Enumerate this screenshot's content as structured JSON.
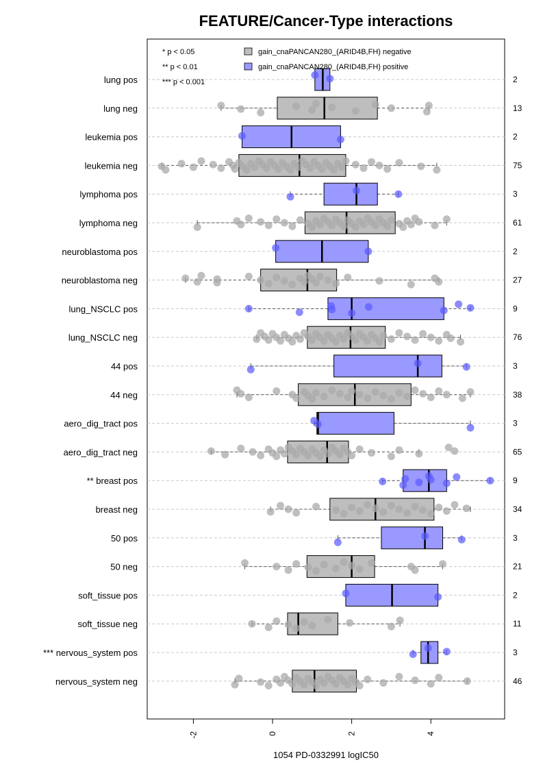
{
  "chart_data": {
    "type": "boxplot",
    "title": "FEATURE/Cancer-Type interactions",
    "xlabel": "1054 PD-0332991 logIC50",
    "xlim": [
      -3.0,
      6.0
    ],
    "xticks": [
      "-2",
      "0",
      "2",
      "4"
    ],
    "xtick_values": [
      -2,
      0,
      2,
      4
    ],
    "significance_legend": [
      "* p < 0.05",
      "** p < 0.01",
      "*** p < 0.001"
    ],
    "legend": {
      "position": "top",
      "entries": [
        {
          "label": "gain_cnaPANCAN280_(ARID4B,FH) negative",
          "color": "#bebebe"
        },
        {
          "label": "gain_cnaPANCAN280_(ARID4B,FH) positive",
          "color": "#9999ff"
        }
      ]
    },
    "colors": {
      "negative_box": "#bebebe",
      "positive_box": "#9999ff",
      "negative_point": "#a9a9a9",
      "positive_point": "#5a5aff",
      "grid": "#c8c8c8"
    },
    "rows": [
      {
        "label": "lung pos",
        "n": "2",
        "group": "pos",
        "q1": 1.07,
        "median": 1.27,
        "q3": 1.45,
        "wlo": 1.07,
        "whi": 1.45,
        "points": [
          1.07,
          1.45
        ]
      },
      {
        "label": "lung neg",
        "n": "13",
        "group": "neg",
        "q1": 0.12,
        "median": 1.31,
        "q3": 2.65,
        "wlo": -1.3,
        "whi": 3.95,
        "points": [
          -1.3,
          -0.8,
          -0.3,
          0.6,
          1.0,
          1.1,
          1.5,
          2.1,
          2.6,
          3.0,
          3.9,
          3.95
        ]
      },
      {
        "label": "leukemia pos",
        "n": "2",
        "group": "pos",
        "q1": -0.77,
        "median": 0.48,
        "q3": 1.72,
        "wlo": -0.77,
        "whi": 1.72,
        "points": [
          -0.77,
          1.72
        ]
      },
      {
        "label": "leukemia neg",
        "n": "75",
        "group": "neg",
        "q1": -0.85,
        "median": 0.68,
        "q3": 1.85,
        "wlo": -2.8,
        "whi": 4.15,
        "points": [
          -2.8,
          -2.7,
          -2.3,
          -2.0,
          -1.8,
          -1.5,
          -1.3,
          -1.1,
          -1.0,
          -0.95,
          -0.85,
          -0.75,
          -0.65,
          -0.55,
          -0.45,
          -0.35,
          -0.25,
          -0.15,
          -0.05,
          0.05,
          0.15,
          0.25,
          0.35,
          0.45,
          0.55,
          0.65,
          0.75,
          0.85,
          0.95,
          1.05,
          1.15,
          1.25,
          1.35,
          1.45,
          1.55,
          1.65,
          1.75,
          1.85,
          2.1,
          2.3,
          2.5,
          2.7,
          2.9,
          3.2,
          3.75,
          4.15
        ]
      },
      {
        "label": "lymphoma pos",
        "n": "3",
        "group": "pos",
        "q1": 1.3,
        "median": 2.12,
        "q3": 2.65,
        "wlo": 0.45,
        "whi": 3.18,
        "points": [
          0.45,
          2.12,
          3.18
        ]
      },
      {
        "label": "lymphoma neg",
        "n": "61",
        "group": "neg",
        "q1": 0.82,
        "median": 1.87,
        "q3": 3.1,
        "wlo": -1.9,
        "whi": 4.4,
        "points": [
          -1.9,
          -0.9,
          -0.8,
          -0.6,
          -0.3,
          -0.1,
          0.1,
          0.3,
          0.5,
          0.7,
          0.9,
          1.0,
          1.1,
          1.2,
          1.3,
          1.4,
          1.5,
          1.6,
          1.7,
          1.8,
          1.9,
          2.0,
          2.1,
          2.2,
          2.3,
          2.4,
          2.5,
          2.6,
          2.7,
          2.8,
          2.9,
          3.0,
          3.2,
          3.3,
          3.4,
          3.5,
          3.6,
          3.7,
          4.1,
          4.4
        ]
      },
      {
        "label": "neuroblastoma pos",
        "n": "2",
        "group": "pos",
        "q1": 0.08,
        "median": 1.25,
        "q3": 2.42,
        "wlo": 0.08,
        "whi": 2.42,
        "points": [
          0.08,
          2.42
        ]
      },
      {
        "label": "neuroblastoma neg",
        "n": "27",
        "group": "neg",
        "q1": -0.3,
        "median": 0.88,
        "q3": 1.62,
        "wlo": -2.2,
        "whi": 4.2,
        "points": [
          -2.2,
          -1.9,
          -1.8,
          -1.4,
          -1.4,
          -0.6,
          -0.3,
          -0.1,
          0.1,
          0.3,
          0.5,
          0.7,
          0.8,
          0.9,
          1.0,
          1.1,
          1.2,
          1.4,
          1.6,
          1.9,
          2.7,
          3.5,
          4.1,
          4.2
        ]
      },
      {
        "label": "lung_NSCLC pos",
        "n": "9",
        "group": "pos",
        "q1": 1.4,
        "median": 2.0,
        "q3": 4.33,
        "wlo": -0.6,
        "whi": 5.0,
        "points": [
          -0.6,
          0.68,
          1.48,
          1.5,
          2.0,
          2.43,
          4.33,
          4.7,
          5.0
        ]
      },
      {
        "label": "lung_NSCLC neg",
        "n": "76",
        "group": "neg",
        "q1": 0.88,
        "median": 1.97,
        "q3": 2.85,
        "wlo": -0.4,
        "whi": 4.75,
        "points": [
          -0.4,
          -0.3,
          -0.2,
          -0.1,
          0.0,
          0.1,
          0.2,
          0.3,
          0.4,
          0.5,
          0.6,
          0.7,
          0.8,
          0.9,
          1.0,
          1.1,
          1.2,
          1.3,
          1.4,
          1.5,
          1.6,
          1.7,
          1.8,
          1.9,
          2.0,
          2.1,
          2.2,
          2.3,
          2.4,
          2.5,
          2.6,
          2.7,
          2.8,
          3.0,
          3.2,
          3.4,
          3.6,
          3.8,
          4.0,
          4.2,
          4.4,
          4.5,
          4.75
        ]
      },
      {
        "label": "44 pos",
        "n": "3",
        "group": "pos",
        "q1": 1.55,
        "median": 3.67,
        "q3": 4.28,
        "wlo": -0.55,
        "whi": 4.9,
        "points": [
          -0.55,
          3.67,
          4.9
        ]
      },
      {
        "label": "44 neg",
        "n": "38",
        "group": "neg",
        "q1": 0.65,
        "median": 2.08,
        "q3": 3.5,
        "wlo": -0.9,
        "whi": 5.0,
        "points": [
          -0.9,
          -0.8,
          -0.6,
          0.1,
          0.5,
          0.6,
          0.8,
          0.9,
          1.0,
          1.1,
          1.3,
          1.5,
          1.7,
          1.9,
          2.0,
          2.2,
          2.4,
          2.6,
          2.8,
          3.0,
          3.2,
          3.4,
          3.6,
          3.8,
          4.0,
          4.2,
          4.4,
          4.8,
          5.0
        ]
      },
      {
        "label": "aero_dig_tract pos",
        "n": "3",
        "group": "pos",
        "q1": 1.12,
        "median": 1.15,
        "q3": 3.07,
        "wlo": 1.05,
        "whi": 5.0,
        "points": [
          1.05,
          1.15,
          5.0
        ]
      },
      {
        "label": "aero_dig_tract neg",
        "n": "65",
        "group": "neg",
        "q1": 0.38,
        "median": 1.38,
        "q3": 1.92,
        "wlo": -1.55,
        "whi": 3.7,
        "points": [
          -1.55,
          -1.2,
          -0.8,
          -0.5,
          -0.3,
          -0.1,
          0.0,
          0.1,
          0.2,
          0.3,
          0.4,
          0.5,
          0.6,
          0.7,
          0.8,
          0.9,
          1.0,
          1.1,
          1.2,
          1.3,
          1.4,
          1.5,
          1.6,
          1.7,
          1.8,
          1.9,
          2.0,
          2.2,
          2.5,
          3.0,
          3.2,
          3.7,
          4.45,
          4.6
        ]
      },
      {
        "label": "** breast pos",
        "n": "9",
        "group": "pos",
        "q1": 3.3,
        "median": 3.95,
        "q3": 4.4,
        "wlo": 2.78,
        "whi": 5.5,
        "points": [
          2.78,
          3.3,
          3.35,
          3.7,
          3.95,
          4.0,
          4.4,
          4.65,
          5.5
        ]
      },
      {
        "label": "breast neg",
        "n": "34",
        "group": "neg",
        "q1": 1.45,
        "median": 2.6,
        "q3": 4.08,
        "wlo": -0.05,
        "whi": 5.0,
        "points": [
          -0.05,
          0.2,
          0.4,
          0.6,
          1.1,
          1.6,
          1.8,
          2.0,
          2.2,
          2.4,
          2.6,
          2.8,
          3.0,
          3.2,
          3.4,
          3.6,
          3.8,
          4.0,
          4.2,
          4.4,
          4.6,
          4.9
        ]
      },
      {
        "label": "50 pos",
        "n": "3",
        "group": "pos",
        "q1": 2.75,
        "median": 3.85,
        "q3": 4.3,
        "wlo": 1.65,
        "whi": 4.78,
        "points": [
          1.65,
          3.85,
          4.78
        ]
      },
      {
        "label": "50 neg",
        "n": "21",
        "group": "neg",
        "q1": 0.87,
        "median": 2.0,
        "q3": 2.58,
        "wlo": -0.7,
        "whi": 4.3,
        "points": [
          -0.7,
          0.1,
          0.4,
          0.6,
          0.9,
          1.1,
          1.3,
          1.6,
          1.8,
          2.0,
          2.2,
          2.5,
          3.5,
          3.6,
          4.3
        ]
      },
      {
        "label": "soft_tissue pos",
        "n": "2",
        "group": "pos",
        "q1": 1.85,
        "median": 3.02,
        "q3": 4.18,
        "wlo": 1.85,
        "whi": 4.18,
        "points": [
          1.85,
          4.18
        ]
      },
      {
        "label": "soft_tissue neg",
        "n": "11",
        "group": "neg",
        "q1": 0.38,
        "median": 0.65,
        "q3": 1.65,
        "wlo": -0.52,
        "whi": 3.22,
        "points": [
          -0.52,
          -0.1,
          0.1,
          0.4,
          0.6,
          0.8,
          1.0,
          1.4,
          1.95,
          3.0,
          3.22
        ]
      },
      {
        "label": "*** nervous_system pos",
        "n": "3",
        "group": "pos",
        "q1": 3.75,
        "median": 3.93,
        "q3": 4.18,
        "wlo": 3.55,
        "whi": 4.4,
        "points": [
          3.55,
          3.93,
          4.4
        ]
      },
      {
        "label": "nervous_system neg",
        "n": "46",
        "group": "neg",
        "q1": 0.5,
        "median": 1.06,
        "q3": 2.12,
        "wlo": -0.95,
        "whi": 4.92,
        "points": [
          -0.95,
          -0.85,
          -0.3,
          -0.1,
          0.1,
          0.2,
          0.3,
          0.4,
          0.5,
          0.6,
          0.7,
          0.8,
          0.9,
          1.0,
          1.1,
          1.2,
          1.3,
          1.4,
          1.5,
          1.6,
          1.7,
          1.8,
          1.9,
          2.0,
          2.1,
          2.2,
          2.4,
          2.8,
          3.2,
          3.6,
          4.0,
          4.2,
          4.92
        ]
      }
    ]
  }
}
